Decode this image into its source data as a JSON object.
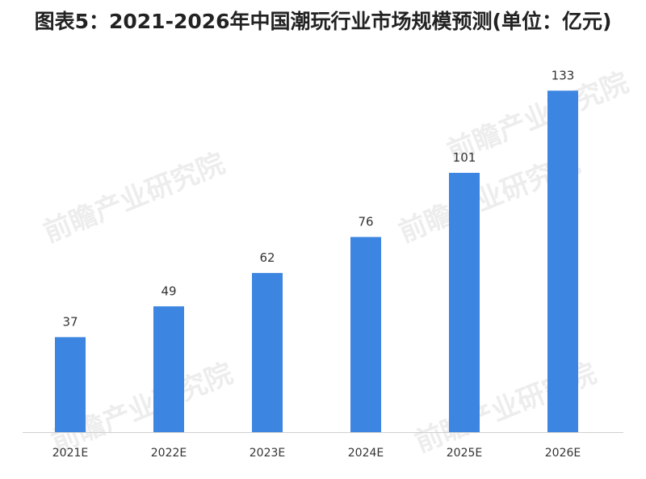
{
  "title": "图表5：2021-2026年中国潮玩行业市场规模预测(单位：亿元)",
  "watermark": "前瞻产业研究院",
  "chart_data": {
    "type": "bar",
    "categories": [
      "2021E",
      "2022E",
      "2023E",
      "2024E",
      "2025E",
      "2026E"
    ],
    "series": [
      {
        "values": [
          37,
          49,
          62,
          76,
          101,
          133
        ],
        "color": "#3c85e0"
      }
    ],
    "ylim": [
      0,
      140
    ],
    "grid": false,
    "legend": "none",
    "data_labels": true
  }
}
